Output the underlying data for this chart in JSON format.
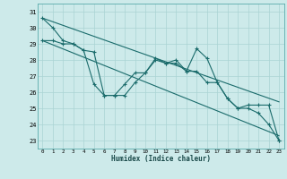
{
  "xlabel": "Humidex (Indice chaleur)",
  "bg_color": "#cdeaea",
  "grid_color": "#aad4d4",
  "line_color": "#1a6b6b",
  "spine_color": "#5aabab",
  "xlim": [
    -0.5,
    23.5
  ],
  "ylim": [
    22.5,
    31.5
  ],
  "xticks": [
    0,
    1,
    2,
    3,
    4,
    5,
    6,
    7,
    8,
    9,
    10,
    11,
    12,
    13,
    14,
    15,
    16,
    17,
    18,
    19,
    20,
    21,
    22,
    23
  ],
  "yticks": [
    23,
    24,
    25,
    26,
    27,
    28,
    29,
    30,
    31
  ],
  "series1": [
    30.6,
    30.0,
    29.2,
    29.0,
    28.6,
    26.5,
    25.8,
    25.8,
    25.8,
    26.6,
    27.2,
    28.1,
    27.8,
    28.0,
    27.3,
    28.7,
    28.1,
    26.6,
    25.6,
    25.0,
    25.0,
    24.7,
    24.0,
    23.0
  ],
  "series2": [
    29.2,
    29.2,
    29.0,
    29.0,
    28.6,
    28.5,
    25.8,
    25.8,
    26.5,
    27.2,
    27.2,
    28.0,
    27.8,
    27.8,
    27.3,
    27.3,
    26.6,
    26.6,
    25.6,
    25.0,
    25.2,
    25.2,
    25.2,
    23.0
  ],
  "trend1_x": [
    0,
    23
  ],
  "trend1_y": [
    30.6,
    25.4
  ],
  "trend2_x": [
    0,
    23
  ],
  "trend2_y": [
    29.2,
    23.3
  ]
}
